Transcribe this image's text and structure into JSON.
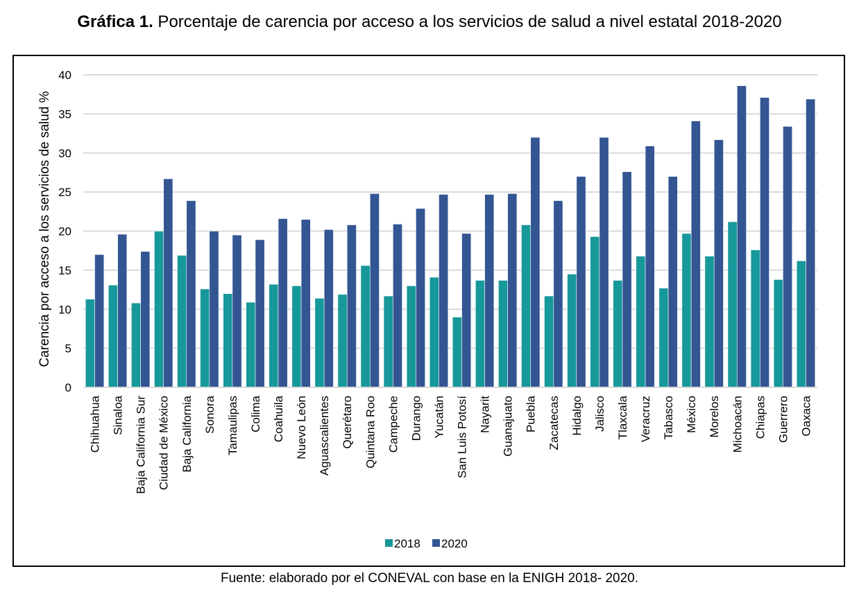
{
  "figure": {
    "title_bold": "Gráfica 1.",
    "title_rest": " Porcentaje de carencia por acceso a los servicios de salud a nivel estatal 2018-2020",
    "source": "Fuente: elaborado por el CONEVAL con base en la ENIGH 2018- 2020."
  },
  "chart_data": {
    "type": "bar",
    "title": "Gráfica 1. Porcentaje de carencia por acceso a los servicios de salud a nivel estatal 2018-2020",
    "xlabel": "",
    "ylabel": "Carencia por acceso a los servicios de salud %",
    "ylim": [
      0,
      40
    ],
    "yticks": [
      0,
      5,
      10,
      15,
      20,
      25,
      30,
      35,
      40
    ],
    "grid": true,
    "legend_position": "bottom-center",
    "categories": [
      "Chihuahua",
      "Sinaloa",
      "Baja California Sur",
      "Ciudad de México",
      "Baja California",
      "Sonora",
      "Tamaulipas",
      "Colima",
      "Coahuila",
      "Nuevo León",
      "Aguascalientes",
      "Querétaro",
      "Quintana Roo",
      "Campeche",
      "Durango",
      "Yucatán",
      "San Luis Potosí",
      "Nayarit",
      "Guanajuato",
      "Puebla",
      "Zacatecas",
      "Hidalgo",
      "Jalisco",
      "Tlaxcala",
      "Veracruz",
      "Tabasco",
      "México",
      "Morelos",
      "Michoacán",
      "Chiapas",
      "Guerrero",
      "Oaxaca"
    ],
    "series": [
      {
        "name": "2018",
        "color": "#17989a",
        "values": [
          11.3,
          13.1,
          10.8,
          20.0,
          16.9,
          12.6,
          12.0,
          10.9,
          13.2,
          13.0,
          11.4,
          11.9,
          15.6,
          11.7,
          13.0,
          14.1,
          9.0,
          13.7,
          13.7,
          20.8,
          11.7,
          14.5,
          19.3,
          13.7,
          16.8,
          12.7,
          19.7,
          16.8,
          21.2,
          17.6,
          13.8,
          16.2
        ]
      },
      {
        "name": "2020",
        "color": "#335693",
        "values": [
          17.0,
          19.6,
          17.4,
          26.7,
          23.9,
          20.0,
          19.5,
          18.9,
          21.6,
          21.5,
          20.2,
          20.8,
          24.8,
          20.9,
          22.9,
          24.7,
          19.7,
          24.7,
          24.8,
          32.0,
          23.9,
          27.0,
          32.0,
          27.6,
          30.9,
          27.0,
          34.1,
          31.7,
          38.6,
          37.1,
          33.4,
          36.9
        ]
      }
    ]
  }
}
